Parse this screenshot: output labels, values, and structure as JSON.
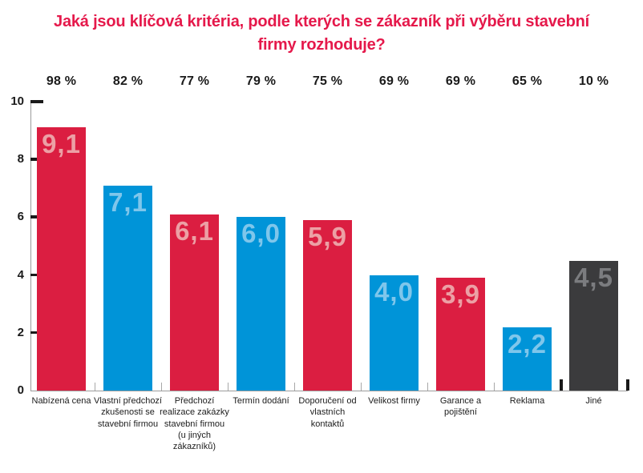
{
  "title": "Jaká jsou klíčová kritéria, podle kterých se zákazník při výběru stavební firmy rozhoduje?",
  "colors": {
    "title": "#E5194B",
    "red": "#DB1E41",
    "blue": "#0094D8",
    "dark": "#3B3B3D",
    "label_on_red": "#ECA0A5",
    "label_on_blue": "#7FC6EB",
    "label_on_dark": "#7B7C7F",
    "axis_line": "#9B9B9B",
    "tick_black": "#1A1A1A",
    "text": "#1A1A1A"
  },
  "chart_data": {
    "type": "bar",
    "title": "Jaká jsou klíčová kritéria, podle kterých se zákazník při výběru stavební firmy rozhoduje?",
    "categories": [
      "Nabízená cena",
      "Vlastní předchozí zkušenosti se stavební firmou",
      "Předchozí realizace zakázky stavební firmou (u jiných zákazníků)",
      "Termín dodání",
      "Doporučení od vlastních kontaktů",
      "Velikost firmy",
      "Garance a pojištění",
      "Reklama",
      "Jiné"
    ],
    "values": [
      9.1,
      7.1,
      6.1,
      6.0,
      5.9,
      4.0,
      3.9,
      2.2,
      4.5
    ],
    "value_labels": [
      "9,1",
      "7,1",
      "6,1",
      "6,0",
      "5,9",
      "4,0",
      "3,9",
      "2,2",
      "4,5"
    ],
    "percent_labels": [
      "98 %",
      "82 %",
      "77 %",
      "79 %",
      "75 %",
      "69 %",
      "69 %",
      "65 %",
      "10 %"
    ],
    "bar_colors": [
      "red",
      "blue",
      "red",
      "blue",
      "red",
      "blue",
      "red",
      "blue",
      "dark"
    ],
    "xlabel": "",
    "ylabel": "",
    "ylim": [
      0,
      10
    ],
    "y_ticks": [
      0,
      2,
      4,
      6,
      8,
      10
    ],
    "grid": false,
    "legend": null
  }
}
